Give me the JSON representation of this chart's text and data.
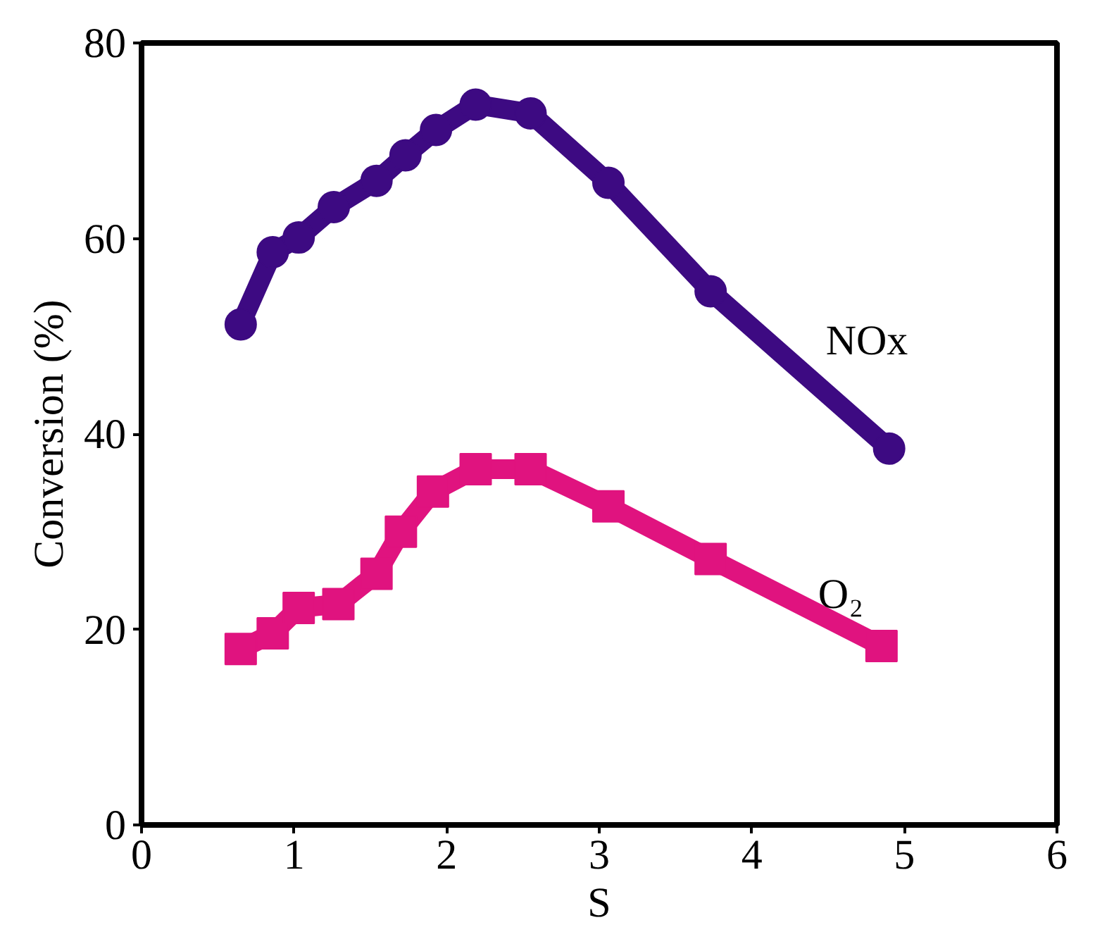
{
  "chart_data": {
    "type": "line",
    "xlabel": "S",
    "ylabel": "Conversion (%)",
    "xlim": [
      0,
      6
    ],
    "ylim": [
      0,
      80
    ],
    "xticks": [
      0,
      1,
      2,
      3,
      4,
      5,
      6
    ],
    "yticks": [
      0,
      20,
      40,
      60,
      80
    ],
    "grid": false,
    "series": [
      {
        "name": "NOx",
        "color": "#3d0a82",
        "marker": "circle",
        "x": [
          0.65,
          0.86,
          1.03,
          1.26,
          1.54,
          1.73,
          1.93,
          2.19,
          2.55,
          3.06,
          3.73,
          4.9
        ],
        "values": [
          51.2,
          58.6,
          60.1,
          63.2,
          65.9,
          68.5,
          71.1,
          73.7,
          72.8,
          65.7,
          54.6,
          38.5
        ]
      },
      {
        "name": "O₂",
        "color": "#e0137f",
        "marker": "square",
        "x": [
          0.65,
          0.86,
          1.03,
          1.29,
          1.54,
          1.7,
          1.91,
          2.19,
          2.55,
          3.06,
          3.73,
          4.85
        ],
        "values": [
          18.0,
          19.6,
          22.2,
          22.6,
          25.7,
          30.0,
          34.1,
          36.4,
          36.4,
          32.6,
          27.2,
          18.3
        ]
      }
    ]
  }
}
